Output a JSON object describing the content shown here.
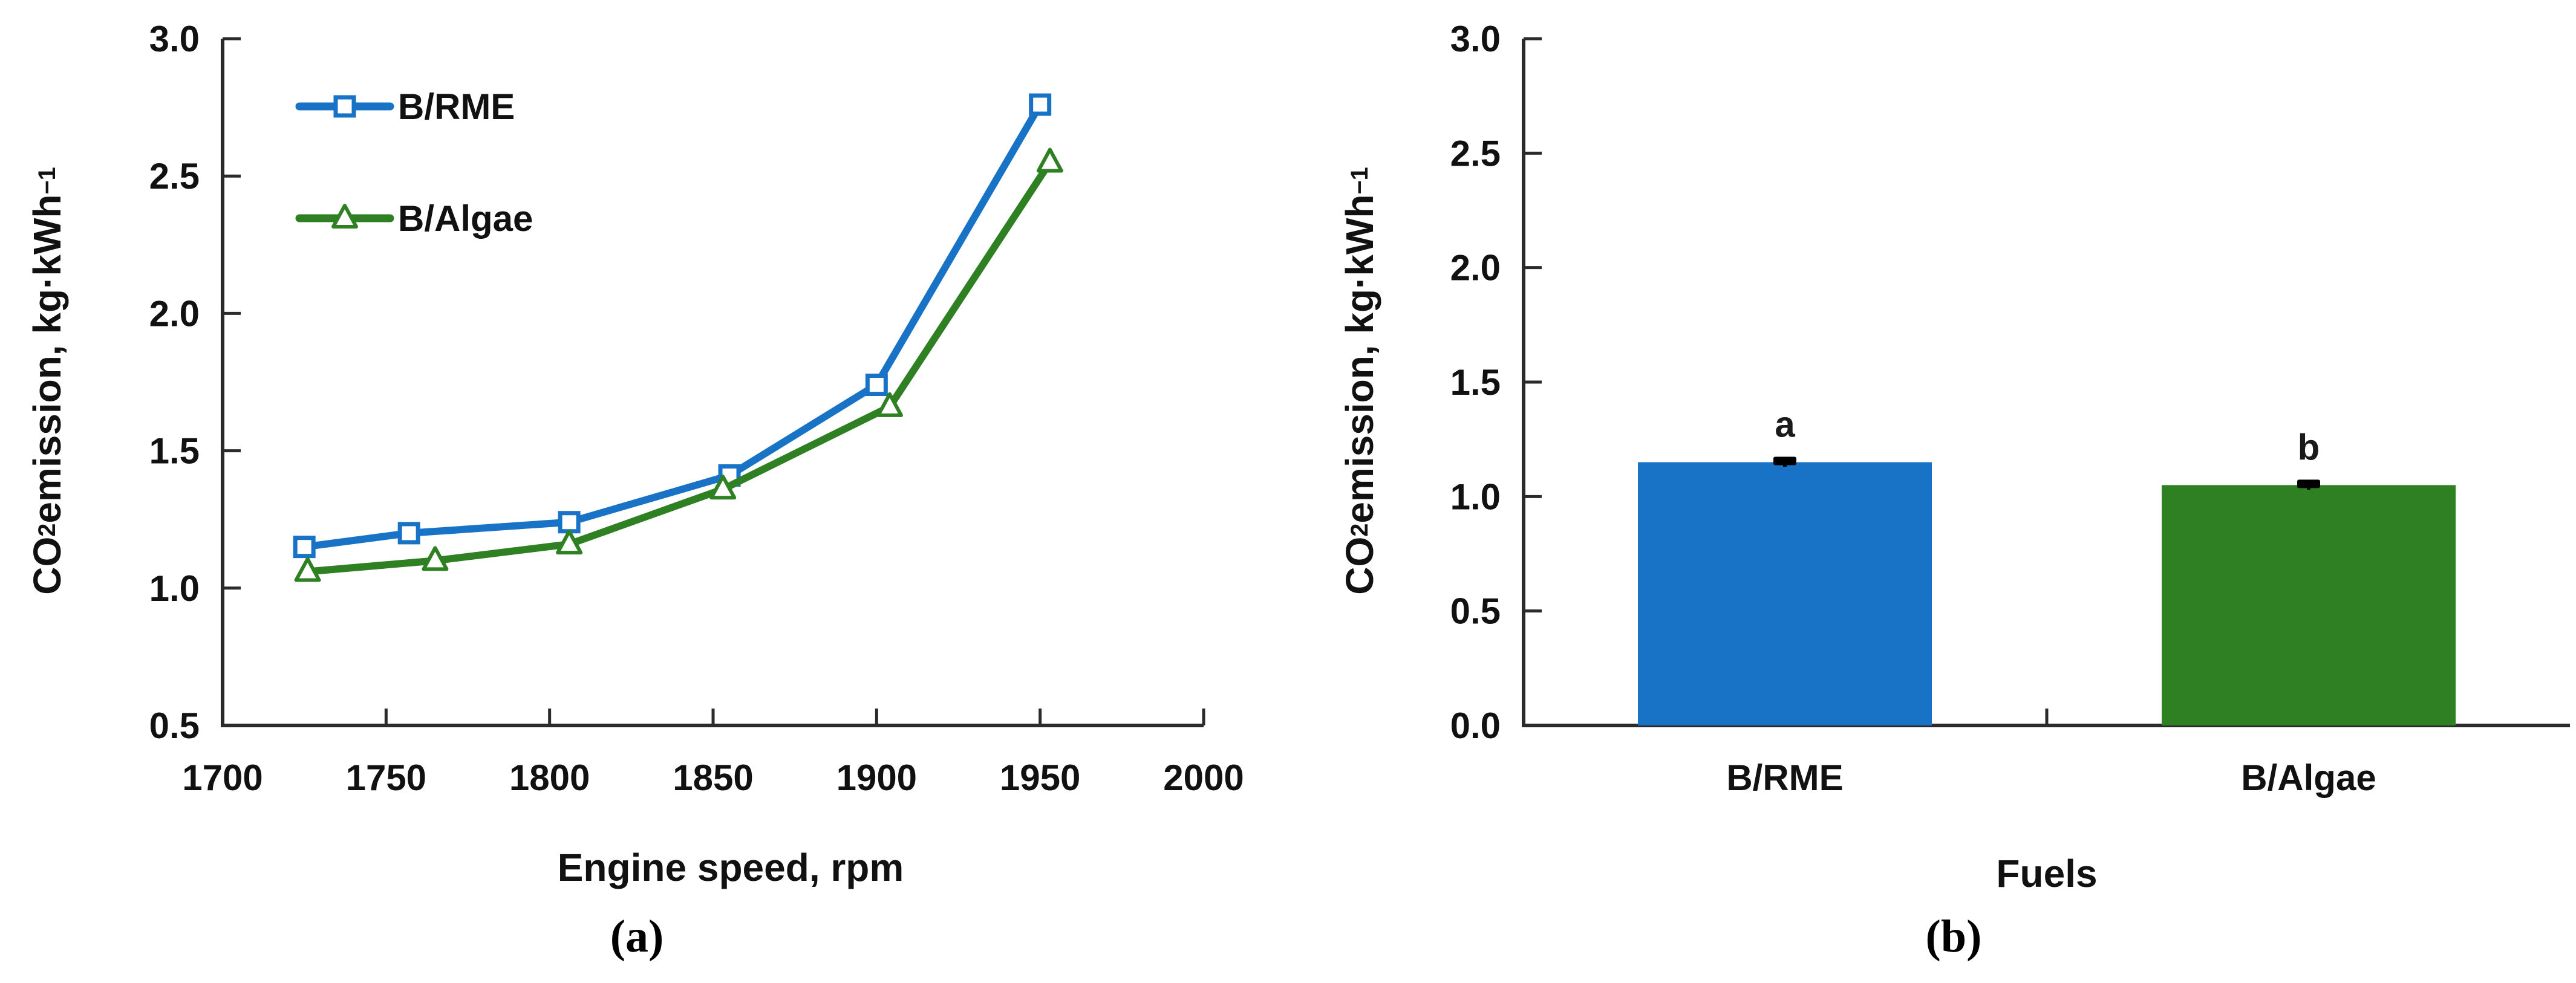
{
  "figure": {
    "background": "#ffffff",
    "axis_color": "#2b2b2b",
    "text_color": "#111111"
  },
  "chart_data": [
    {
      "type": "line",
      "panel_caption": "(a)",
      "xlabel": "Engine speed, rpm",
      "ylabel_parts": [
        {
          "t": "CO"
        },
        {
          "t": "2",
          "s": "sub"
        },
        {
          "t": " emission, kg·kWh"
        },
        {
          "t": "−1",
          "s": "sup"
        }
      ],
      "xlim": [
        1700,
        2000
      ],
      "ylim": [
        0.5,
        3.0
      ],
      "x_ticks": [
        "1700",
        "1750",
        "1800",
        "1850",
        "1900",
        "1950",
        "2000"
      ],
      "y_ticks": [
        "0.5",
        "1.0",
        "1.5",
        "2.0",
        "2.5",
        "3.0"
      ],
      "legend_position": "upper-left",
      "grid": false,
      "series": [
        {
          "name": "B/RME",
          "color": "#1873C6",
          "marker": "square",
          "x": [
            1725,
            1757,
            1806,
            1855,
            1900,
            1950
          ],
          "y": [
            1.15,
            1.2,
            1.24,
            1.41,
            1.74,
            2.76
          ]
        },
        {
          "name": "B/Algae",
          "color": "#2E8023",
          "marker": "triangle",
          "x": [
            1726,
            1765,
            1806,
            1853,
            1904,
            1953
          ],
          "y": [
            1.06,
            1.1,
            1.16,
            1.36,
            1.66,
            2.55
          ]
        }
      ]
    },
    {
      "type": "bar",
      "panel_caption": "(b)",
      "xlabel": "Fuels",
      "ylabel_parts": [
        {
          "t": "CO"
        },
        {
          "t": "2",
          "s": "sub"
        },
        {
          "t": " emission, kg·kWh"
        },
        {
          "t": "−1",
          "s": "sup"
        }
      ],
      "ylim": [
        0.0,
        3.0
      ],
      "y_ticks": [
        "0.0",
        "0.5",
        "1.0",
        "1.5",
        "2.0",
        "2.5",
        "3.0"
      ],
      "categories": [
        "B/RME",
        "B/Algae"
      ],
      "values": [
        1.15,
        1.05
      ],
      "errors": [
        0.02,
        0.02
      ],
      "bar_colors": [
        "#1873C6",
        "#2E8023"
      ],
      "sig_letters": [
        "a",
        "b"
      ]
    }
  ]
}
